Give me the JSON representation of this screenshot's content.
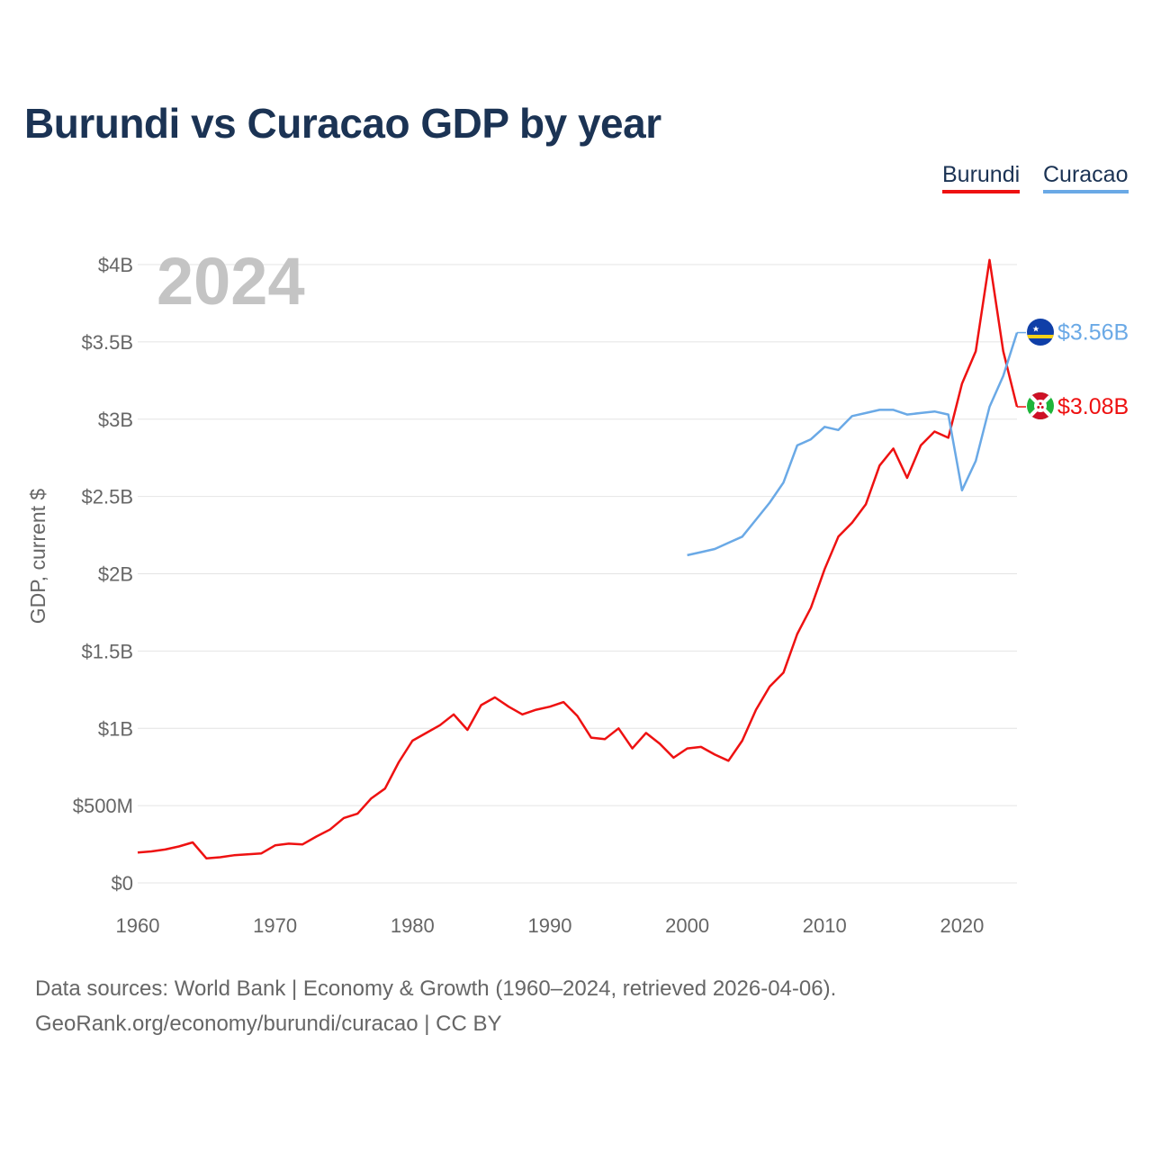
{
  "title": "Burundi vs Curacao GDP by year",
  "legend": [
    {
      "name": "Burundi",
      "color": "#ee1111"
    },
    {
      "name": "Curacao",
      "color": "#6aa9e6"
    }
  ],
  "year_label": "2024",
  "footer": {
    "source": "Data sources: World Bank | Economy & Growth (1960–2024, retrieved 2026-04-06).",
    "credit": "GeoRank.org/economy/burundi/curacao | CC BY"
  },
  "chart_data": {
    "type": "line",
    "title": "Burundi vs Curacao GDP by year",
    "xlabel": "",
    "ylabel": "GDP, current $",
    "xlim": [
      1960,
      2024
    ],
    "ylim": [
      0,
      4000000000
    ],
    "x_ticks": [
      1960,
      1970,
      1980,
      1990,
      2000,
      2010,
      2020
    ],
    "x_tick_labels": [
      "1960",
      "1970",
      "1980",
      "1990",
      "2000",
      "2010",
      "2020"
    ],
    "y_ticks": [
      0,
      500000000,
      1000000000,
      1500000000,
      2000000000,
      2500000000,
      3000000000,
      3500000000,
      4000000000
    ],
    "y_tick_labels": [
      "$0",
      "$500M",
      "$1B",
      "$1.5B",
      "$2B",
      "$2.5B",
      "$3B",
      "$3.5B",
      "$4B"
    ],
    "grid": true,
    "legend_position": "top-right",
    "series": [
      {
        "name": "Burundi",
        "color": "#ee1111",
        "end_label": "$3.08B",
        "x": [
          1960,
          1961,
          1962,
          1963,
          1964,
          1965,
          1966,
          1967,
          1968,
          1969,
          1970,
          1971,
          1972,
          1973,
          1974,
          1975,
          1976,
          1977,
          1978,
          1979,
          1980,
          1981,
          1982,
          1983,
          1984,
          1985,
          1986,
          1987,
          1988,
          1989,
          1990,
          1991,
          1992,
          1993,
          1994,
          1995,
          1996,
          1997,
          1998,
          1999,
          2000,
          2001,
          2002,
          2003,
          2004,
          2005,
          2006,
          2007,
          2008,
          2009,
          2010,
          2011,
          2012,
          2013,
          2014,
          2015,
          2016,
          2017,
          2018,
          2019,
          2020,
          2021,
          2022,
          2023,
          2024
        ],
        "values": [
          196000000,
          204000000,
          216000000,
          236000000,
          262000000,
          159000000,
          166000000,
          179000000,
          185000000,
          191000000,
          243000000,
          254000000,
          249000000,
          300000000,
          345000000,
          420000000,
          448000000,
          547000000,
          610000000,
          780000000,
          920000000,
          970000000,
          1020000000,
          1090000000,
          990000000,
          1150000000,
          1200000000,
          1140000000,
          1090000000,
          1120000000,
          1140000000,
          1170000000,
          1080000000,
          940000000,
          930000000,
          1000000000,
          870000000,
          970000000,
          900000000,
          810000000,
          870000000,
          880000000,
          830000000,
          790000000,
          920000000,
          1120000000,
          1270000000,
          1360000000,
          1610000000,
          1780000000,
          2030000000,
          2240000000,
          2330000000,
          2450000000,
          2700000000,
          2810000000,
          2620000000,
          2830000000,
          2920000000,
          2880000000,
          3230000000,
          3440000000,
          4030000000,
          3440000000,
          3080000000
        ]
      },
      {
        "name": "Curacao",
        "color": "#6aa9e6",
        "end_label": "$3.56B",
        "x": [
          2000,
          2001,
          2002,
          2003,
          2004,
          2005,
          2006,
          2007,
          2008,
          2009,
          2010,
          2011,
          2012,
          2013,
          2014,
          2015,
          2016,
          2017,
          2018,
          2019,
          2020,
          2021,
          2022,
          2023,
          2024
        ],
        "values": [
          2120000000,
          2140000000,
          2160000000,
          2200000000,
          2240000000,
          2350000000,
          2460000000,
          2590000000,
          2830000000,
          2870000000,
          2950000000,
          2930000000,
          3020000000,
          3040000000,
          3060000000,
          3060000000,
          3030000000,
          3040000000,
          3050000000,
          3030000000,
          2540000000,
          2730000000,
          3080000000,
          3280000000,
          3560000000
        ]
      }
    ]
  }
}
